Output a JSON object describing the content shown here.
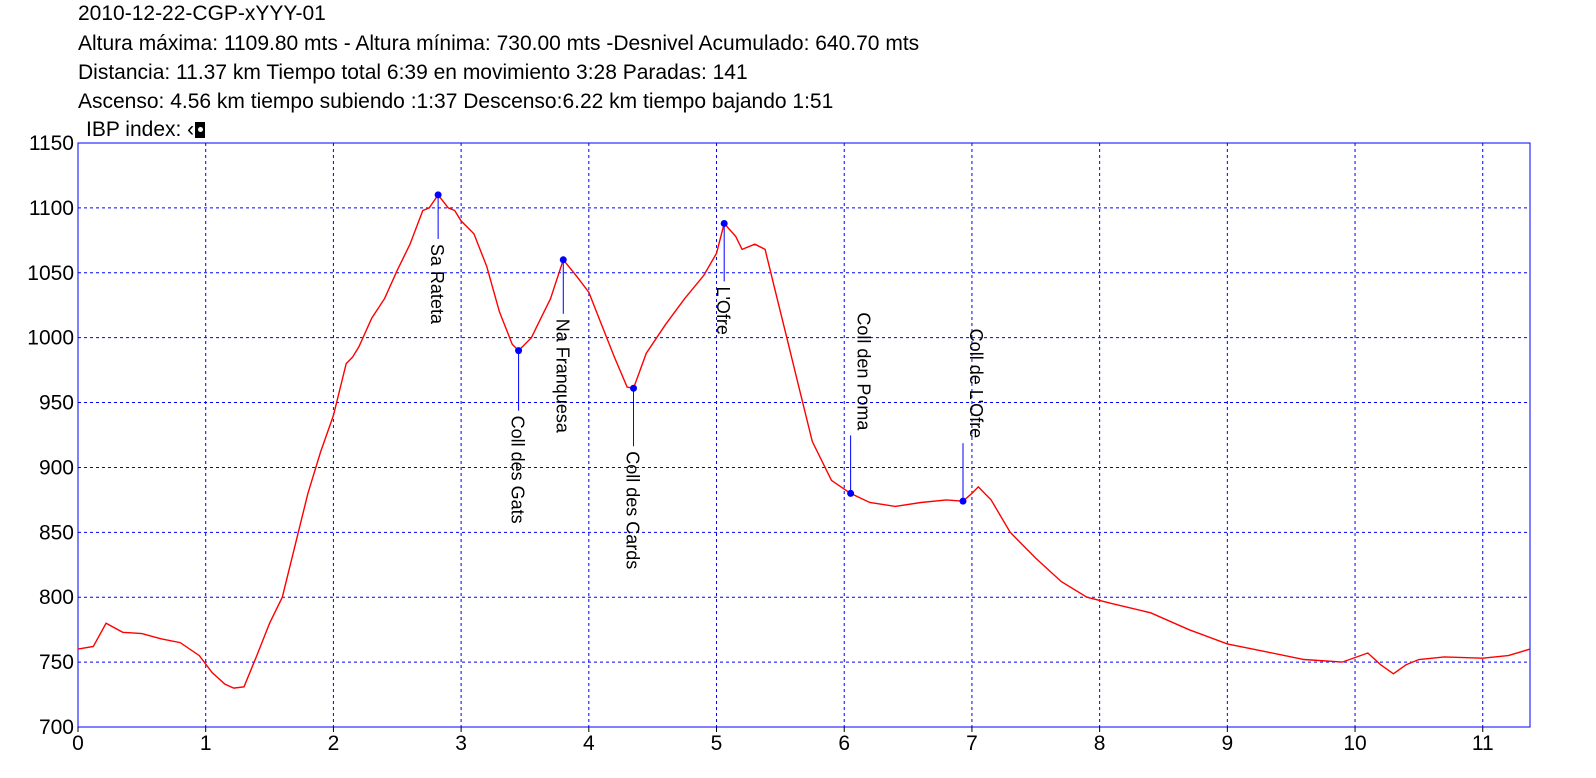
{
  "header": {
    "title": "2010-12-22-CGP-xYYY-01",
    "line1": "Altura máxima: 1109.80 mts - Altura mínima: 730.00 mts -Desnivel Acumulado: 640.70 mts",
    "line2": "Distancia: 11.37 km  Tiempo total 6:39  en movimiento 3:28 Paradas: 141",
    "line3": "Ascenso: 4.56 km  tiempo subiendo :1:37  Descenso:6.22 km tiempo bajando 1:51",
    "ibp_label": "IBP index: ‹",
    "ibp_icon": "ibp-badge-icon"
  },
  "chart_data": {
    "type": "line",
    "title": "2010-12-22-CGP-xYYY-01",
    "xlabel": "",
    "ylabel": "",
    "xlim": [
      0,
      11.37
    ],
    "ylim": [
      700,
      1150
    ],
    "x_ticks": [
      "0",
      "1",
      "2",
      "3",
      "4",
      "5",
      "6",
      "7",
      "8",
      "9",
      "10",
      "11"
    ],
    "y_ticks": [
      "700",
      "750",
      "800",
      "850",
      "900",
      "950",
      "1000",
      "1050",
      "1100",
      "1150"
    ],
    "grid": true,
    "colors": {
      "line": "#ff0000",
      "frame": "#0000ff",
      "grid": "#0000ff",
      "marker": "#0000ff"
    },
    "series": [
      {
        "x": [
          0,
          0.12,
          0.22,
          0.35,
          0.5,
          0.65,
          0.8,
          0.95,
          1.05,
          1.15,
          1.22,
          1.3,
          1.4,
          1.5,
          1.6,
          1.7,
          1.8,
          1.9,
          2.0,
          2.1,
          2.15,
          2.2,
          2.3,
          2.4,
          2.5,
          2.6,
          2.7,
          2.75,
          2.82,
          2.9,
          2.95,
          3.0,
          3.1,
          3.2,
          3.3,
          3.4,
          3.45,
          3.55,
          3.6,
          3.7,
          3.8,
          3.9,
          4.0,
          4.1,
          4.2,
          4.3,
          4.35,
          4.45,
          4.6,
          4.75,
          4.9,
          5.0,
          5.06,
          5.15,
          5.2,
          5.3,
          5.38,
          5.45,
          5.55,
          5.65,
          5.75,
          5.9,
          6.05,
          6.2,
          6.4,
          6.6,
          6.8,
          6.93,
          7.0,
          7.05,
          7.15,
          7.3,
          7.5,
          7.7,
          7.9,
          8.1,
          8.4,
          8.7,
          9.0,
          9.3,
          9.6,
          9.9,
          10.1,
          10.2,
          10.3,
          10.4,
          10.5,
          10.7,
          11.0,
          11.2,
          11.37
        ],
        "values": [
          760,
          762,
          780,
          773,
          772,
          768,
          765,
          755,
          742,
          733,
          730,
          731,
          755,
          780,
          800,
          840,
          880,
          912,
          940,
          980,
          985,
          993,
          1015,
          1030,
          1052,
          1072,
          1098,
          1100,
          1110,
          1100,
          1098,
          1090,
          1080,
          1055,
          1020,
          995,
          990,
          1000,
          1010,
          1030,
          1060,
          1048,
          1035,
          1010,
          985,
          962,
          961,
          988,
          1010,
          1030,
          1048,
          1065,
          1088,
          1078,
          1068,
          1072,
          1068,
          1040,
          1000,
          960,
          920,
          890,
          880,
          873,
          870,
          873,
          875,
          874,
          880,
          885,
          875,
          850,
          830,
          812,
          800,
          795,
          788,
          775,
          764,
          758,
          752,
          750,
          757,
          748,
          741,
          748,
          752,
          754,
          753,
          755,
          760
        ]
      }
    ],
    "annotations": [
      {
        "label": "Sa Rateta",
        "x": 2.82,
        "y": 1110
      },
      {
        "label": "Coll des Gats",
        "x": 3.45,
        "y": 990
      },
      {
        "label": "Na Franquesa",
        "x": 3.8,
        "y": 1060
      },
      {
        "label": "Coll des Cards",
        "x": 4.35,
        "y": 961
      },
      {
        "label": "L'Ofre",
        "x": 5.06,
        "y": 1088
      },
      {
        "label": "Coll den Poma",
        "x": 6.05,
        "y": 880
      },
      {
        "label": "Coll de L'Ofre",
        "x": 6.93,
        "y": 874
      }
    ]
  }
}
